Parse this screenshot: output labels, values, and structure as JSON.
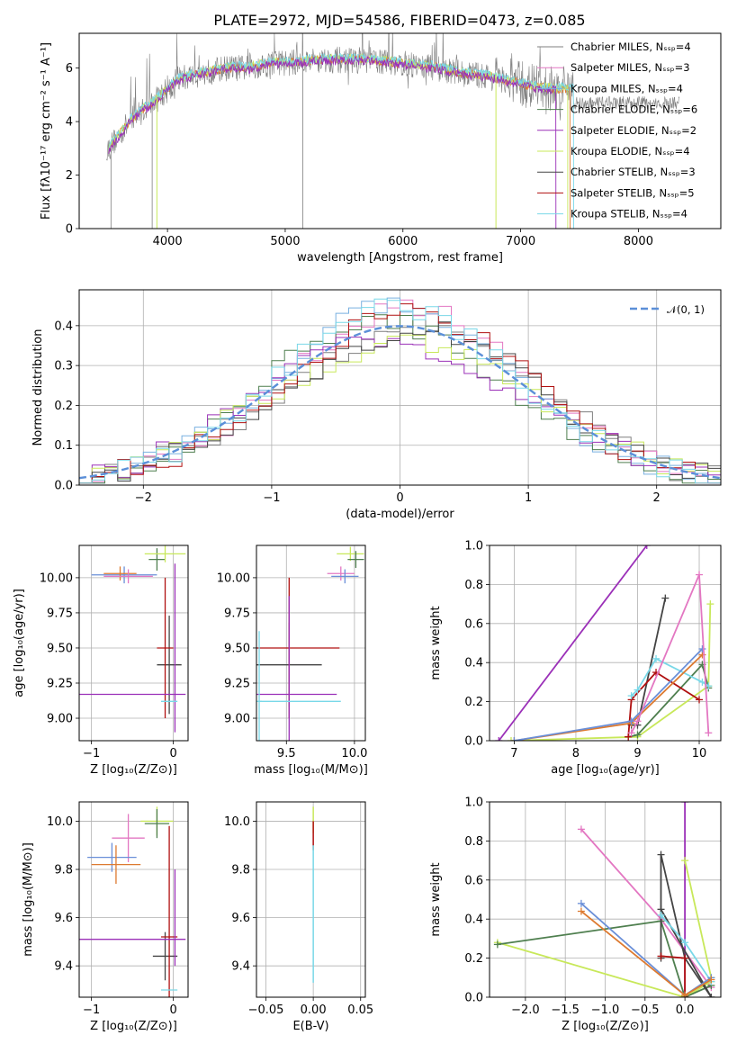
{
  "title": "PLATE=2972, MJD=54586, FIBERID=0473, z=0.085",
  "colors": [
    "#7f7f7f",
    "#e377c2",
    "#1f9ec2",
    "#4f7f4f",
    "#9b30b8",
    "#dd7a30",
    "#444444",
    "#b01010",
    "#79d8e8",
    "#c8e85a",
    "#6a8fd8"
  ],
  "panels": {
    "spectrum": {
      "xlabel": "wavelength [Angstrom, rest frame]",
      "ylabel": "Flux [fλ10⁻¹⁷ erg cm⁻² s⁻¹ A⁻¹]",
      "xlim": [
        3250,
        8700
      ],
      "ylim": [
        0,
        7.3
      ],
      "xticks": [
        "4000",
        "5000",
        "6000",
        "7000",
        "8000"
      ],
      "yticks": [
        "0",
        "2",
        "4",
        "6"
      ],
      "legend": [
        {
          "label": "Chabrier MILES, Nₛₛₚ=4",
          "color": "#7f7f7f"
        },
        {
          "label": "Salpeter MILES, Nₛₛₚ=3",
          "color": "#e377c2"
        },
        {
          "label": "Kroupa MILES, Nₛₛₚ=4",
          "color": "#79b0e0"
        },
        {
          "label": "Chabrier ELODIE, Nₛₛₚ=6",
          "color": "#4f7f4f"
        },
        {
          "label": "Salpeter ELODIE, Nₛₛₚ=2",
          "color": "#9b30b8"
        },
        {
          "label": "Kroupa ELODIE, Nₛₛₚ=4",
          "color": "#c8e85a"
        },
        {
          "label": "Chabrier STELIB, Nₛₛₚ=3",
          "color": "#444444"
        },
        {
          "label": "Salpeter STELIB, Nₛₛₚ=5",
          "color": "#b01010"
        },
        {
          "label": "Kroupa STELIB, Nₛₛₚ=4",
          "color": "#79d8e8"
        }
      ]
    },
    "residuals": {
      "xlabel": "(data-model)/error",
      "ylabel": "Normed distribution",
      "xlim": [
        -2.5,
        2.5
      ],
      "ylim": [
        0,
        0.49
      ],
      "xticks": [
        "−2",
        "−1",
        "0",
        "1",
        "2"
      ],
      "yticks": [
        "0.0",
        "0.1",
        "0.2",
        "0.3",
        "0.4"
      ],
      "legend": "𝒩(0, 1)",
      "gauss_color": "#5b8fd8"
    },
    "age_Z": {
      "xlabel": "Z [log₁₀(Z/Z⊙)]",
      "ylabel": "age  [log₁₀(age/yr)]",
      "xlim": [
        -1.15,
        0.18
      ],
      "ylim": [
        8.84,
        10.23
      ],
      "xticks": [
        "−1",
        "0"
      ],
      "xtickvals": [
        -1,
        0
      ],
      "yticks": [
        "9.00",
        "9.25",
        "9.50",
        "9.75",
        "10.00"
      ],
      "ytickvals": [
        9.0,
        9.25,
        9.5,
        9.75,
        10.0
      ],
      "crosses": [
        {
          "x": -0.6,
          "xerr": 0.4,
          "y": 10.02,
          "yerr": 0.06,
          "color": "#6a8fd8"
        },
        {
          "x": -0.65,
          "xerr": 0.2,
          "y": 10.03,
          "yerr": 0.05,
          "color": "#dd7a30"
        },
        {
          "x": -0.55,
          "xerr": 0.3,
          "y": 10.01,
          "yerr": 0.05,
          "color": "#e377c2"
        },
        {
          "x": -0.2,
          "xerr": 0.1,
          "y": 10.13,
          "yerr": 0.08,
          "color": "#4f7f4f"
        },
        {
          "x": -0.1,
          "xerr": 0.25,
          "y": 10.17,
          "yerr": 0.06,
          "color": "#c8e85a"
        },
        {
          "x": -0.05,
          "xerr": 0.15,
          "y": 9.38,
          "yerr": 0.35,
          "color": "#444444"
        },
        {
          "x": -0.1,
          "xerr": 0.1,
          "y": 9.5,
          "yerr": 0.5,
          "color": "#b01010"
        },
        {
          "x": -0.5,
          "xerr": 0.65,
          "y": 9.17,
          "yerr": 0.0,
          "color": "#9b30b8"
        },
        {
          "x": 0.02,
          "xerr": 0.0,
          "y": 9.5,
          "yerr": 0.6,
          "color": "#9b30b8"
        },
        {
          "x": -0.05,
          "xerr": 0.1,
          "y": 9.12,
          "yerr": 0.0,
          "color": "#79d8e8"
        }
      ]
    },
    "age_mass": {
      "xlabel": "mass [log₁₀(M/M⊙)]",
      "xlim": [
        9.28,
        10.08
      ],
      "ylim": [
        8.84,
        10.23
      ],
      "xticks": [
        "9.5",
        "10.0"
      ],
      "xtickvals": [
        9.5,
        10.0
      ],
      "yticks": [
        "9.00",
        "9.25",
        "9.50",
        "9.75",
        "10.00"
      ],
      "ytickvals": [
        9.0,
        9.25,
        9.5,
        9.75,
        10.0
      ],
      "crosses": [
        {
          "x": 9.9,
          "xerr": 0.1,
          "y": 10.03,
          "yerr": 0.05,
          "color": "#e377c2"
        },
        {
          "x": 9.93,
          "xerr": 0.1,
          "y": 10.01,
          "yerr": 0.05,
          "color": "#6a8fd8"
        },
        {
          "x": 9.97,
          "xerr": 0.1,
          "y": 10.17,
          "yerr": 0.05,
          "color": "#c8e85a"
        },
        {
          "x": 10.01,
          "xerr": 0.06,
          "y": 10.13,
          "yerr": 0.06,
          "color": "#4f7f4f"
        },
        {
          "x": 9.52,
          "xerr": 0.24,
          "y": 9.38,
          "yerr": 0.3,
          "color": "#444444"
        },
        {
          "x": 9.52,
          "xerr": 0.37,
          "y": 9.5,
          "yerr": 0.5,
          "color": "#b01010"
        },
        {
          "x": 9.52,
          "xerr": 0.35,
          "y": 9.17,
          "yerr": 0.7,
          "color": "#9b30b8"
        },
        {
          "x": 9.3,
          "xerr": 0.02,
          "y": 9.12,
          "yerr": 0.5,
          "color": "#79d8e8"
        },
        {
          "x": 9.6,
          "xerr": 0.3,
          "y": 9.12,
          "yerr": 0.0,
          "color": "#79d8e8"
        }
      ]
    },
    "mw_age": {
      "xlabel": "age  [log₁₀(age/yr)]",
      "ylabel": "mass weight",
      "xlim": [
        6.6,
        10.35
      ],
      "ylim": [
        0,
        1
      ],
      "xticks": [
        "7",
        "8",
        "9",
        "10"
      ],
      "xtickvals": [
        7,
        8,
        9,
        10
      ],
      "yticks": [
        "0.0",
        "0.2",
        "0.4",
        "0.6",
        "0.8",
        "1.0"
      ],
      "ytickvals": [
        0,
        0.2,
        0.4,
        0.6,
        0.8,
        1.0
      ],
      "lines": [
        {
          "color": "#9b30b8",
          "x": [
            6.75,
            9.15
          ],
          "y": [
            0,
            1.0
          ]
        },
        {
          "color": "#c8e85a",
          "x": [
            6.95,
            9.0,
            10.15,
            10.18
          ],
          "y": [
            0,
            0.02,
            0.28,
            0.7
          ]
        },
        {
          "color": "#4f7f4f",
          "x": [
            8.85,
            9.0,
            10.05,
            10.15
          ],
          "y": [
            0.02,
            0.03,
            0.39,
            0.27
          ]
        },
        {
          "color": "#444444",
          "x": [
            8.9,
            9.0,
            9.45
          ],
          "y": [
            0.08,
            0.08,
            0.73
          ]
        },
        {
          "color": "#b01010",
          "x": [
            8.85,
            8.9,
            9.3,
            10.0
          ],
          "y": [
            0.02,
            0.21,
            0.35,
            0.21
          ]
        },
        {
          "color": "#79d8e8",
          "x": [
            8.9,
            9.0,
            9.3,
            10.05,
            10.15
          ],
          "y": [
            0.23,
            0.26,
            0.42,
            0.3,
            0.28
          ]
        },
        {
          "color": "#dd7a30",
          "x": [
            7.0,
            8.9,
            10.05
          ],
          "y": [
            0,
            0.09,
            0.44
          ]
        },
        {
          "color": "#6a8fd8",
          "x": [
            7.0,
            8.9,
            10.05
          ],
          "y": [
            0,
            0.1,
            0.47
          ]
        },
        {
          "color": "#e377c2",
          "x": [
            8.9,
            9.0,
            10.0,
            10.15
          ],
          "y": [
            0.04,
            0.1,
            0.85,
            0.04
          ]
        }
      ]
    },
    "mass_Z": {
      "xlabel": "Z [log₁₀(Z/Z⊙)]",
      "ylabel": "mass [log₁₀(M/M⊙)]",
      "xlim": [
        -1.15,
        0.18
      ],
      "ylim": [
        9.27,
        10.08
      ],
      "xticks": [
        "−1",
        "0"
      ],
      "xtickvals": [
        -1,
        0
      ],
      "yticks": [
        "9.4",
        "9.6",
        "9.8",
        "10.0"
      ],
      "ytickvals": [
        9.4,
        9.6,
        9.8,
        10.0
      ],
      "crosses": [
        {
          "x": -0.55,
          "xerr": 0.2,
          "y": 9.93,
          "yerr": 0.1,
          "color": "#e377c2"
        },
        {
          "x": -0.75,
          "xerr": 0.3,
          "y": 9.85,
          "yerr": 0.06,
          "color": "#6a8fd8"
        },
        {
          "x": -0.7,
          "xerr": 0.3,
          "y": 9.82,
          "yerr": 0.08,
          "color": "#dd7a30"
        },
        {
          "x": -0.2,
          "xerr": 0.2,
          "y": 10.0,
          "yerr": 0.06,
          "color": "#c8e85a"
        },
        {
          "x": -0.2,
          "xerr": 0.15,
          "y": 9.99,
          "yerr": 0.06,
          "color": "#4f7f4f"
        },
        {
          "x": -0.1,
          "xerr": 0.15,
          "y": 9.44,
          "yerr": 0.1,
          "color": "#444444"
        },
        {
          "x": -0.05,
          "xerr": 0.1,
          "y": 9.52,
          "yerr": 0.46,
          "color": "#b01010"
        },
        {
          "x": -0.5,
          "xerr": 0.65,
          "y": 9.51,
          "yerr": 0.0,
          "color": "#9b30b8"
        },
        {
          "x": 0.02,
          "xerr": 0.0,
          "y": 9.6,
          "yerr": 0.2,
          "color": "#9b30b8"
        },
        {
          "x": -0.05,
          "xerr": 0.1,
          "y": 9.3,
          "yerr": 0.0,
          "color": "#79d8e8"
        }
      ]
    },
    "mass_ebv": {
      "xlabel": "E(B-V)",
      "xlim": [
        -0.06,
        0.055
      ],
      "ylim": [
        9.27,
        10.08
      ],
      "xticks": [
        "−0.05",
        "0.00",
        "0.05"
      ],
      "xtickvals": [
        -0.05,
        0,
        0.05
      ],
      "yticks": [
        "9.4",
        "9.6",
        "9.8",
        "10.0"
      ],
      "ytickvals": [
        9.4,
        9.6,
        9.8,
        10.0
      ],
      "bars": [
        {
          "x": 0,
          "y0": 9.95,
          "y1": 10.06,
          "color": "#c8e85a"
        },
        {
          "x": 0,
          "y0": 9.88,
          "y1": 10.0,
          "color": "#b01010"
        },
        {
          "x": 0,
          "y0": 9.33,
          "y1": 9.9,
          "color": "#79d8e8"
        }
      ]
    },
    "mw_Z": {
      "xlabel": "Z [log₁₀(Z/Z⊙)]",
      "ylabel": "mass weight",
      "xlim": [
        -2.45,
        0.45
      ],
      "ylim": [
        0,
        1
      ],
      "xticks": [
        "−2.0",
        "−1.5",
        "−1.0",
        "−0.5",
        "0.0"
      ],
      "xtickvals": [
        -2.0,
        -1.5,
        -1.0,
        -0.5,
        0.0
      ],
      "yticks": [
        "0.0",
        "0.2",
        "0.4",
        "0.6",
        "0.8",
        "1.0"
      ],
      "ytickvals": [
        0,
        0.2,
        0.4,
        0.6,
        0.8,
        1.0
      ],
      "lines": [
        {
          "color": "#e377c2",
          "x": [
            -1.3,
            -0.3,
            0.33
          ],
          "y": [
            0.86,
            0.4,
            0.05
          ]
        },
        {
          "color": "#9b30b8",
          "x": [
            0.0,
            0.0
          ],
          "y": [
            1.0,
            0.0
          ]
        },
        {
          "color": "#c8e85a",
          "x": [
            -2.35,
            0.0,
            0.33
          ],
          "y": [
            0.28,
            0.0,
            0.08
          ]
        },
        {
          "color": "#c8e85a",
          "x": [
            0.0,
            0.33
          ],
          "y": [
            0.7,
            0.1
          ]
        },
        {
          "color": "#4f7f4f",
          "x": [
            -2.35,
            -0.3,
            0.0,
            0.33
          ],
          "y": [
            0.27,
            0.39,
            0.0,
            0.06
          ]
        },
        {
          "color": "#444444",
          "x": [
            -0.3,
            -0.3,
            0.0,
            0.33
          ],
          "y": [
            0.2,
            0.73,
            0.2,
            0.0
          ]
        },
        {
          "color": "#444444",
          "x": [
            -0.3,
            0.33
          ],
          "y": [
            0.45,
            0.0
          ]
        },
        {
          "color": "#b01010",
          "x": [
            -0.3,
            0.0,
            0.0
          ],
          "y": [
            0.21,
            0.2,
            0.0
          ]
        },
        {
          "color": "#79d8e8",
          "x": [
            -0.3,
            0.0,
            0.33
          ],
          "y": [
            0.42,
            0.28,
            0.08
          ]
        },
        {
          "color": "#6a8fd8",
          "x": [
            -1.3,
            0.0,
            0.33
          ],
          "y": [
            0.48,
            0.01,
            0.1
          ]
        },
        {
          "color": "#dd7a30",
          "x": [
            -1.3,
            0.0,
            0.33
          ],
          "y": [
            0.44,
            0.01,
            0.09
          ]
        }
      ]
    }
  },
  "chart_data": [
    {
      "type": "line",
      "title": "PLATE=2972, MJD=54586, FIBERID=0473, z=0.085",
      "xlabel": "wavelength [Angstrom, rest frame]",
      "ylabel": "Flux [fλ10⁻¹⁷ erg cm⁻² s⁻¹ A⁻¹]",
      "xlim": [
        3250,
        8700
      ],
      "ylim": [
        0,
        7.3
      ],
      "series": [
        {
          "name": "Chabrier MILES",
          "x": [
            3500,
            3700,
            3900,
            4100,
            4300,
            4500,
            4700,
            4900,
            5100,
            5300,
            5500,
            5700,
            5900,
            6100,
            6300,
            6500,
            6700,
            6900,
            7100,
            7300
          ],
          "values": [
            3.0,
            4.1,
            4.8,
            5.6,
            5.8,
            6.0,
            6.0,
            6.2,
            6.2,
            6.3,
            6.3,
            6.3,
            6.2,
            6.1,
            6.0,
            5.8,
            5.7,
            5.5,
            5.3,
            5.2
          ]
        },
        {
          "name": "Kroupa STELIB",
          "x": [
            3500,
            3700,
            3900,
            4100,
            4300,
            4500,
            4700,
            4900,
            5100,
            5300,
            5500,
            5700,
            5900,
            6100,
            6300,
            6500,
            6700,
            6900,
            7100,
            7300
          ],
          "values": [
            3.1,
            4.3,
            5.2,
            5.9,
            6.1,
            6.2,
            6.3,
            6.4,
            6.4,
            6.4,
            6.4,
            6.3,
            6.3,
            6.2,
            6.0,
            5.9,
            5.7,
            5.6,
            5.4,
            5.3
          ]
        }
      ]
    },
    {
      "type": "bar",
      "xlabel": "(data-model)/error",
      "ylabel": "Normed distribution",
      "xlim": [
        -2.5,
        2.5
      ],
      "ylim": [
        0,
        0.49
      ],
      "x": [
        -2.4,
        -2.2,
        -2.0,
        -1.8,
        -1.6,
        -1.4,
        -1.2,
        -1.0,
        -0.8,
        -0.6,
        -0.4,
        -0.2,
        0.0,
        0.2,
        0.4,
        0.6,
        0.8,
        1.0,
        1.2,
        1.4,
        1.6,
        1.8,
        2.0,
        2.2,
        2.4
      ],
      "series": [
        {
          "name": "𝒩(0, 1)",
          "values": [
            0.022,
            0.035,
            0.054,
            0.079,
            0.111,
            0.15,
            0.194,
            0.242,
            0.29,
            0.333,
            0.368,
            0.391,
            0.399,
            0.391,
            0.368,
            0.333,
            0.29,
            0.242,
            0.194,
            0.15,
            0.111,
            0.079,
            0.054,
            0.035,
            0.022
          ]
        }
      ]
    }
  ]
}
